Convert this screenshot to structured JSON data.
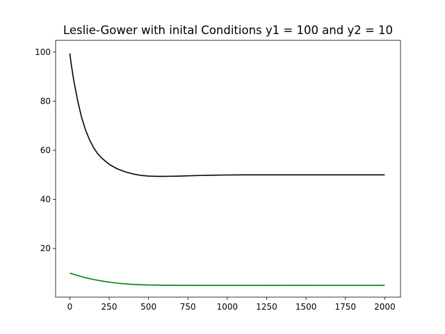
{
  "chart_data": {
    "type": "line",
    "title": "Leslie-Gower with inital Conditions y1 = 100 and y2 = 10",
    "xlabel": "",
    "ylabel": "",
    "xlim": [
      -90,
      2100
    ],
    "ylim": [
      0.2,
      104.8
    ],
    "xticks": [
      0,
      250,
      500,
      750,
      1000,
      1250,
      1500,
      1750,
      2000
    ],
    "yticks": [
      20,
      40,
      60,
      80,
      100
    ],
    "grid": false,
    "legend": "none",
    "series": [
      {
        "color": "#000000",
        "x": [
          0,
          10,
          25,
          50,
          75,
          100,
          125,
          150,
          175,
          200,
          250,
          300,
          350,
          400,
          450,
          500,
          550,
          600,
          650,
          700,
          750,
          800,
          900,
          1000,
          1100,
          1250,
          1500,
          1750,
          2000
        ],
        "y": [
          99.5,
          94.7,
          88.5,
          80.2,
          73.4,
          68.3,
          64.3,
          61.2,
          58.8,
          57.0,
          54.3,
          52.5,
          51.3,
          50.4,
          49.8,
          49.5,
          49.4,
          49.4,
          49.45,
          49.5,
          49.6,
          49.7,
          49.85,
          49.95,
          50.0,
          50.0,
          50.0,
          50.0,
          50.0
        ]
      },
      {
        "color": "#008000",
        "x": [
          0,
          50,
          100,
          150,
          200,
          250,
          300,
          350,
          400,
          450,
          500,
          550,
          600,
          700,
          800,
          1000,
          1250,
          1500,
          1750,
          2000
        ],
        "y": [
          10.0,
          9.0,
          8.1,
          7.4,
          6.8,
          6.3,
          5.9,
          5.6,
          5.4,
          5.25,
          5.15,
          5.1,
          5.05,
          5.0,
          4.97,
          4.97,
          4.98,
          5.0,
          5.0,
          5.0
        ]
      }
    ]
  }
}
